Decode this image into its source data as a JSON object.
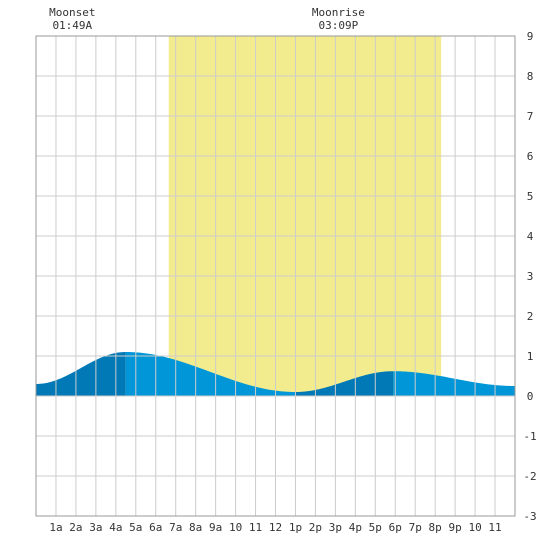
{
  "annotations": {
    "moonset": {
      "label": "Moonset",
      "time": "01:49A",
      "hour": 1.82
    },
    "moonrise": {
      "label": "Moonrise",
      "time": "03:09P",
      "hour": 15.15
    }
  },
  "colors": {
    "background": "#ffffff",
    "grid": "#cccccc",
    "daylight": "#f3ec8f",
    "tide_light": "#0096d8",
    "tide_dark": "#0079b6",
    "axis_text": "#333333"
  },
  "chart_data": {
    "type": "area",
    "title": "",
    "xlabel": "",
    "ylabel": "",
    "xlim": [
      0,
      24
    ],
    "ylim": [
      -3,
      9
    ],
    "grid": true,
    "x_tick_labels": [
      {
        "x": 1,
        "label": "1a"
      },
      {
        "x": 2,
        "label": "2a"
      },
      {
        "x": 3,
        "label": "3a"
      },
      {
        "x": 4,
        "label": "4a"
      },
      {
        "x": 5,
        "label": "5a"
      },
      {
        "x": 6,
        "label": "6a"
      },
      {
        "x": 7,
        "label": "7a"
      },
      {
        "x": 8,
        "label": "8a"
      },
      {
        "x": 9,
        "label": "9a"
      },
      {
        "x": 10,
        "label": "10"
      },
      {
        "x": 11,
        "label": "11"
      },
      {
        "x": 12,
        "label": "12"
      },
      {
        "x": 13,
        "label": "1p"
      },
      {
        "x": 14,
        "label": "2p"
      },
      {
        "x": 15,
        "label": "3p"
      },
      {
        "x": 16,
        "label": "4p"
      },
      {
        "x": 17,
        "label": "5p"
      },
      {
        "x": 18,
        "label": "6p"
      },
      {
        "x": 19,
        "label": "7p"
      },
      {
        "x": 20,
        "label": "8p"
      },
      {
        "x": 21,
        "label": "9p"
      },
      {
        "x": 22,
        "label": "10"
      },
      {
        "x": 23,
        "label": "11"
      }
    ],
    "y_ticks": [
      -3,
      -2,
      -1,
      0,
      1,
      2,
      3,
      4,
      5,
      6,
      7,
      8,
      9
    ],
    "daylight_hours": [
      6.65,
      20.3
    ],
    "tide_extremes": [
      {
        "hour": 0.0,
        "height": 0.3
      },
      {
        "hour": 4.5,
        "height": 1.1
      },
      {
        "hour": 13.0,
        "height": 0.1
      },
      {
        "hour": 17.9,
        "height": 0.62
      },
      {
        "hour": 24.0,
        "height": 0.25
      }
    ],
    "tide_phase_bands": [
      {
        "from": 0.0,
        "to": 4.5,
        "tone": "dark"
      },
      {
        "from": 4.5,
        "to": 13.0,
        "tone": "light"
      },
      {
        "from": 13.0,
        "to": 17.9,
        "tone": "dark"
      },
      {
        "from": 17.9,
        "to": 24.0,
        "tone": "light"
      }
    ]
  }
}
